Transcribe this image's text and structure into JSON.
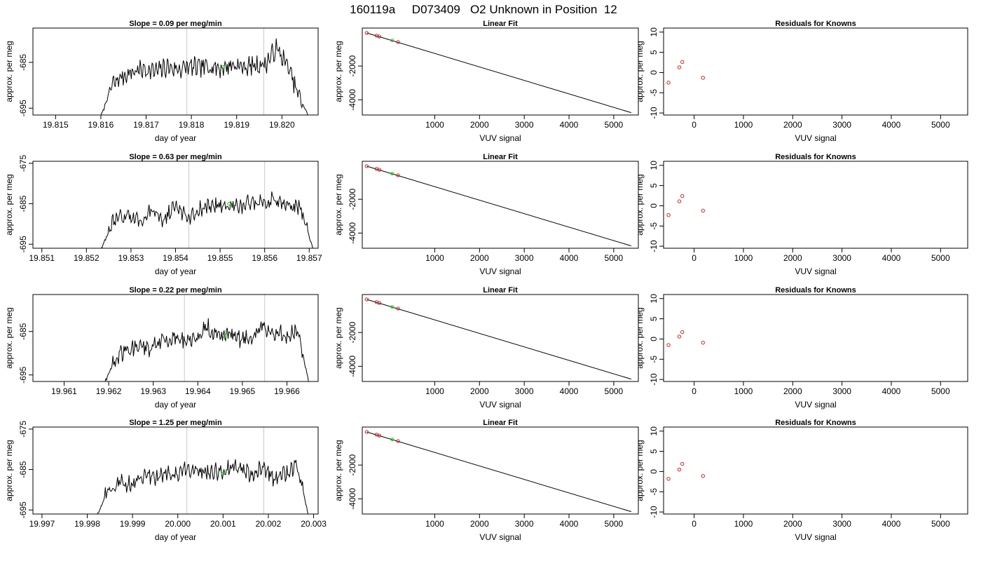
{
  "figure": {
    "title": "160119a     D073409   O2 Unknown in Position  12"
  },
  "colors": {
    "trace": "#000000",
    "vline": "#c8c8c8",
    "known_point": "#cc2222",
    "unknown_point": "#22cc22",
    "fit_line": "#000000"
  },
  "chart_data": [
    {
      "row": 0,
      "col": 0,
      "type": "line",
      "title": "Slope =  0.09  per meg/min",
      "xlabel": "day of year",
      "ylabel": "approx. per meg",
      "xlim": [
        19.8145,
        19.8208
      ],
      "ylim": [
        -696.5,
        -677.5
      ],
      "xticks": [
        19.815,
        19.816,
        19.817,
        19.818,
        19.819,
        19.82
      ],
      "xtick_labels": [
        "19.815",
        "19.816",
        "19.817",
        "19.818",
        "19.819",
        "19.820"
      ],
      "yticks": [
        -695,
        -685
      ],
      "ytick_labels": [
        "-695",
        "-685"
      ],
      "series": [
        {
          "x_start": 19.816,
          "x_end": 19.8206,
          "knots": [
            -697,
            -690,
            -688,
            -687,
            -686.5,
            -687,
            -686,
            -686.5,
            -686,
            -686.2,
            -685.8,
            -686.3,
            -685.5,
            -686,
            -685.7,
            -685.5,
            -682,
            -685.5,
            -692,
            -697
          ]
        }
      ],
      "vlines": [
        19.8179,
        19.8196
      ],
      "marker": {
        "x": 19.8187,
        "y": -686
      }
    },
    {
      "row": 0,
      "col": 1,
      "type": "line",
      "title": "Linear Fit",
      "xlabel": "VUV signal",
      "ylabel": "approx. per meg",
      "xlim": [
        -620,
        5550
      ],
      "ylim": [
        -4900,
        250
      ],
      "xticks": [
        1000,
        2000,
        3000,
        4000,
        5000
      ],
      "xtick_labels": [
        "1000",
        "2000",
        "3000",
        "4000",
        "5000"
      ],
      "yticks": [
        -4000,
        -2000
      ],
      "ytick_labels": [
        "-4000",
        "-2000"
      ],
      "fit": {
        "x": [
          -520,
          5390
        ],
        "y": [
          -40,
          -4760
        ]
      },
      "known_points": [
        {
          "x": -520,
          "y": -40
        },
        {
          "x": -300,
          "y": -200
        },
        {
          "x": -240,
          "y": -250
        },
        {
          "x": 180,
          "y": -580
        }
      ],
      "unknown_point": {
        "x": 50,
        "y": -480
      }
    },
    {
      "row": 0,
      "col": 2,
      "type": "scatter",
      "title": "Residuals for Knowns",
      "xlabel": "VUV signal",
      "ylabel": "approx. per meg",
      "xlim": [
        -620,
        5550
      ],
      "ylim": [
        -10.5,
        11
      ],
      "xticks": [
        0,
        1000,
        2000,
        3000,
        4000,
        5000
      ],
      "xtick_labels": [
        "0",
        "1000",
        "2000",
        "3000",
        "4000",
        "5000"
      ],
      "yticks": [
        -10,
        -5,
        0,
        5,
        10
      ],
      "ytick_labels": [
        "-10",
        "-5",
        "0",
        "5",
        "10"
      ],
      "points": [
        {
          "x": -520,
          "y": -2.5
        },
        {
          "x": -300,
          "y": 1.3
        },
        {
          "x": -240,
          "y": 2.6
        },
        {
          "x": 180,
          "y": -1.3
        }
      ]
    },
    {
      "row": 1,
      "col": 0,
      "type": "line",
      "title": "Slope =  0.63  per meg/min",
      "xlabel": "day of year",
      "ylabel": "approx. per meg",
      "xlim": [
        19.8508,
        19.8572
      ],
      "ylim": [
        -696,
        -674.5
      ],
      "xticks": [
        19.851,
        19.852,
        19.853,
        19.854,
        19.855,
        19.856,
        19.857
      ],
      "xtick_labels": [
        "19.851",
        "19.852",
        "19.853",
        "19.854",
        "19.855",
        "19.856",
        "19.857"
      ],
      "yticks": [
        -695,
        -685,
        -675
      ],
      "ytick_labels": [
        "-695",
        "-685",
        "-675"
      ],
      "series": [
        {
          "x_start": 19.8523,
          "x_end": 19.8571,
          "knots": [
            -697,
            -690,
            -688,
            -689,
            -687,
            -688.5,
            -686,
            -688,
            -686.5,
            -685.5,
            -685,
            -686,
            -684.5,
            -685.2,
            -684,
            -685.5,
            -686,
            -697
          ]
        }
      ],
      "vlines": [
        19.8543,
        19.856
      ],
      "marker": {
        "x": 19.8552,
        "y": -685
      }
    },
    {
      "row": 1,
      "col": 1,
      "type": "line",
      "title": "Linear Fit",
      "xlabel": "VUV signal",
      "ylabel": "approx. per meg",
      "xlim": [
        -620,
        5550
      ],
      "ylim": [
        -4900,
        250
      ],
      "xticks": [
        1000,
        2000,
        3000,
        4000,
        5000
      ],
      "xtick_labels": [
        "1000",
        "2000",
        "3000",
        "4000",
        "5000"
      ],
      "yticks": [
        -4000,
        -2000
      ],
      "ytick_labels": [
        "-4000",
        "-2000"
      ],
      "fit": {
        "x": [
          -520,
          5390
        ],
        "y": [
          -40,
          -4760
        ]
      },
      "known_points": [
        {
          "x": -520,
          "y": -40
        },
        {
          "x": -300,
          "y": -200
        },
        {
          "x": -240,
          "y": -250
        },
        {
          "x": 180,
          "y": -580
        }
      ],
      "unknown_point": {
        "x": 50,
        "y": -480
      }
    },
    {
      "row": 1,
      "col": 2,
      "type": "scatter",
      "title": "Residuals for Knowns",
      "xlabel": "VUV signal",
      "ylabel": "approx. per meg",
      "xlim": [
        -620,
        5550
      ],
      "ylim": [
        -10.5,
        11
      ],
      "xticks": [
        0,
        1000,
        2000,
        3000,
        4000,
        5000
      ],
      "xtick_labels": [
        "0",
        "1000",
        "2000",
        "3000",
        "4000",
        "5000"
      ],
      "yticks": [
        -10,
        -5,
        0,
        5,
        10
      ],
      "ytick_labels": [
        "-10",
        "-5",
        "0",
        "5",
        "10"
      ],
      "points": [
        {
          "x": -520,
          "y": -2.3
        },
        {
          "x": -300,
          "y": 1.1
        },
        {
          "x": -240,
          "y": 2.4
        },
        {
          "x": 180,
          "y": -1.2
        }
      ]
    },
    {
      "row": 2,
      "col": 0,
      "type": "line",
      "title": "Slope =  0.22  per meg/min",
      "xlabel": "day of year",
      "ylabel": "approx. per meg",
      "xlim": [
        19.9603,
        19.9667
      ],
      "ylim": [
        -696.5,
        -676.5
      ],
      "xticks": [
        19.961,
        19.962,
        19.963,
        19.964,
        19.965,
        19.966
      ],
      "xtick_labels": [
        "19.961",
        "19.962",
        "19.963",
        "19.964",
        "19.965",
        "19.966"
      ],
      "yticks": [
        -695,
        -685
      ],
      "ytick_labels": [
        "-695",
        "-685"
      ],
      "series": [
        {
          "x_start": 19.9619,
          "x_end": 19.9665,
          "knots": [
            -697,
            -691,
            -689,
            -688,
            -689,
            -687.5,
            -686,
            -687,
            -686.5,
            -684,
            -686,
            -685.5,
            -687,
            -685.5,
            -684,
            -686,
            -685.5,
            -685,
            -697
          ]
        }
      ],
      "vlines": [
        19.9637,
        19.9655
      ],
      "marker": {
        "x": 19.9646,
        "y": -686
      }
    },
    {
      "row": 2,
      "col": 1,
      "type": "line",
      "title": "Linear Fit",
      "xlabel": "VUV signal",
      "ylabel": "approx. per meg",
      "xlim": [
        -620,
        5550
      ],
      "ylim": [
        -4900,
        250
      ],
      "xticks": [
        1000,
        2000,
        3000,
        4000,
        5000
      ],
      "xtick_labels": [
        "1000",
        "2000",
        "3000",
        "4000",
        "5000"
      ],
      "yticks": [
        -4000,
        -2000
      ],
      "ytick_labels": [
        "-4000",
        "-2000"
      ],
      "fit": {
        "x": [
          -520,
          5390
        ],
        "y": [
          -40,
          -4760
        ]
      },
      "known_points": [
        {
          "x": -520,
          "y": -40
        },
        {
          "x": -300,
          "y": -200
        },
        {
          "x": -240,
          "y": -250
        },
        {
          "x": 180,
          "y": -580
        }
      ],
      "unknown_point": {
        "x": 50,
        "y": -480
      }
    },
    {
      "row": 2,
      "col": 2,
      "type": "scatter",
      "title": "Residuals for Knowns",
      "xlabel": "VUV signal",
      "ylabel": "approx. per meg",
      "xlim": [
        -620,
        5550
      ],
      "ylim": [
        -10.5,
        11
      ],
      "xticks": [
        0,
        1000,
        2000,
        3000,
        4000,
        5000
      ],
      "xtick_labels": [
        "0",
        "1000",
        "2000",
        "3000",
        "4000",
        "5000"
      ],
      "yticks": [
        -10,
        -5,
        0,
        5,
        10
      ],
      "ytick_labels": [
        "-10",
        "-5",
        "0",
        "5",
        "10"
      ],
      "points": [
        {
          "x": -520,
          "y": -1.5
        },
        {
          "x": -300,
          "y": 0.6
        },
        {
          "x": -240,
          "y": 1.7
        },
        {
          "x": 180,
          "y": -0.9
        }
      ]
    },
    {
      "row": 3,
      "col": 0,
      "type": "line",
      "title": "Slope =  1.25  per meg/min",
      "xlabel": "day of year",
      "ylabel": "approx. per meg",
      "xlim": [
        19.9968,
        20.0031
      ],
      "ylim": [
        -696,
        -674.5
      ],
      "xticks": [
        19.997,
        19.998,
        19.999,
        20.0,
        20.001,
        20.002,
        20.003
      ],
      "xtick_labels": [
        "19.997",
        "19.998",
        "19.999",
        "20.000",
        "20.001",
        "20.002",
        "20.003"
      ],
      "yticks": [
        -695,
        -685,
        -675
      ],
      "ytick_labels": [
        "-695",
        "-685",
        "-675"
      ],
      "series": [
        {
          "x_start": 19.9982,
          "x_end": 20.0029,
          "knots": [
            -697,
            -690,
            -688,
            -689,
            -686,
            -687.5,
            -685.5,
            -686,
            -684.5,
            -685.5,
            -685.8,
            -685,
            -684,
            -686,
            -684.5,
            -687,
            -686,
            -684,
            -697
          ]
        }
      ],
      "vlines": [
        20.0002,
        20.0019
      ],
      "marker": {
        "x": 20.001,
        "y": -686
      }
    },
    {
      "row": 3,
      "col": 1,
      "type": "line",
      "title": "Linear Fit",
      "xlabel": "VUV signal",
      "ylabel": "approx. per meg",
      "xlim": [
        -620,
        5550
      ],
      "ylim": [
        -4900,
        250
      ],
      "xticks": [
        1000,
        2000,
        3000,
        4000,
        5000
      ],
      "xtick_labels": [
        "1000",
        "2000",
        "3000",
        "4000",
        "5000"
      ],
      "yticks": [
        -4000,
        -2000
      ],
      "ytick_labels": [
        "-4000",
        "-2000"
      ],
      "fit": {
        "x": [
          -520,
          5390
        ],
        "y": [
          -40,
          -4760
        ]
      },
      "known_points": [
        {
          "x": -520,
          "y": -40
        },
        {
          "x": -300,
          "y": -200
        },
        {
          "x": -240,
          "y": -250
        },
        {
          "x": 180,
          "y": -580
        }
      ],
      "unknown_point": {
        "x": 50,
        "y": -480
      }
    },
    {
      "row": 3,
      "col": 2,
      "type": "scatter",
      "title": "Residuals for Knowns",
      "xlabel": "VUV signal",
      "ylabel": "approx. per meg",
      "xlim": [
        -620,
        5550
      ],
      "ylim": [
        -10.5,
        11
      ],
      "xticks": [
        0,
        1000,
        2000,
        3000,
        4000,
        5000
      ],
      "xtick_labels": [
        "0",
        "1000",
        "2000",
        "3000",
        "4000",
        "5000"
      ],
      "yticks": [
        -10,
        -5,
        0,
        5,
        10
      ],
      "ytick_labels": [
        "-10",
        "-5",
        "0",
        "5",
        "10"
      ],
      "points": [
        {
          "x": -520,
          "y": -1.8
        },
        {
          "x": -300,
          "y": 0.5
        },
        {
          "x": -240,
          "y": 1.9
        },
        {
          "x": 180,
          "y": -1.1
        }
      ]
    }
  ]
}
